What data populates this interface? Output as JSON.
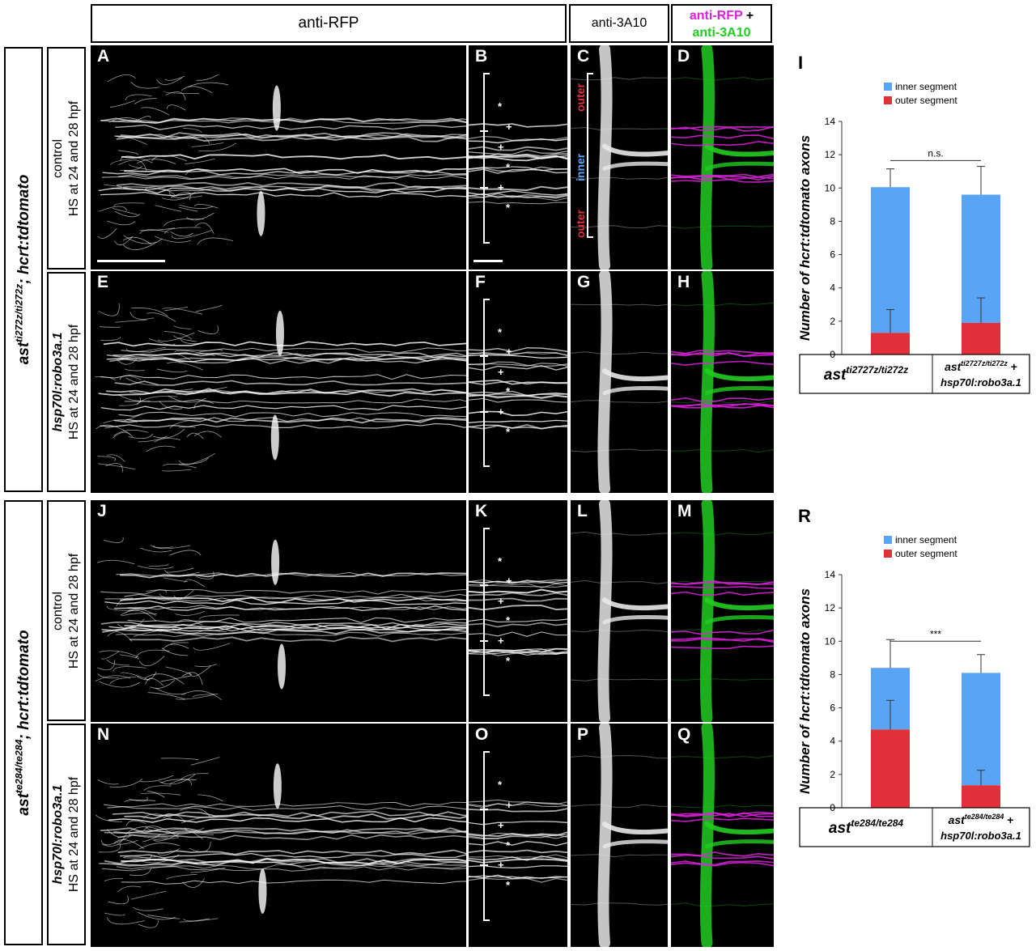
{
  "headers": {
    "anti_rfp": "anti-RFP",
    "anti_3a10": "anti-3A10",
    "merge_magenta": "anti-RFP",
    "merge_plus": " +",
    "merge_green": "anti-3A10"
  },
  "genotypes": {
    "top_base": "ast",
    "top_sup": "ti272z/ti272z",
    "top_rest": "; hcrt:tdtomato",
    "bottom_base": "ast",
    "bottom_sup": "te284/te284",
    "bottom_rest": "; hcrt:tdtomato"
  },
  "conditions": {
    "control_line1": "control",
    "control_line2": "HS at 24 and 28 hpf",
    "robo_line1": "hsp70l:robo3a.1",
    "robo_line2": "HS at 24 and 28 hpf"
  },
  "panel_letters": [
    "A",
    "B",
    "C",
    "D",
    "E",
    "F",
    "G",
    "H",
    "J",
    "K",
    "L",
    "M",
    "N",
    "O",
    "P",
    "Q"
  ],
  "segment_labels": {
    "outer": "outer",
    "inner": "inner"
  },
  "marks": {
    "star": "*",
    "plus": "+"
  },
  "colors": {
    "inner": "#5aa4f5",
    "outer": "#e0303a",
    "magenta": "#e020e0",
    "green": "#22cc22"
  },
  "charts": {
    "I": {
      "letter": "I",
      "ylabel_pre": "Number of ",
      "ylabel_it": "hcrt:tdtomato",
      "ylabel_post": " axons",
      "legend_inner": "inner segment",
      "legend_outer": "outer segment",
      "significance": "n.s.",
      "cat1_base": "ast",
      "cat1_sup": "ti2727z/ti272z",
      "cat2_base": "ast",
      "cat2_sup": "ti2727z/ti272z",
      "cat2_plus": " +",
      "cat2_line2": "hsp70l:robo3a.1"
    },
    "R": {
      "letter": "R",
      "ylabel_pre": "Number of ",
      "ylabel_it": "hcrt:tdtomato",
      "ylabel_post": " axons",
      "legend_inner": "inner segment",
      "legend_outer": "outer segment",
      "significance": "***",
      "cat1_base": "ast",
      "cat1_sup": "te284/te284",
      "cat2_base": "ast",
      "cat2_sup": "te284/te284",
      "cat2_plus": " +",
      "cat2_line2": "hsp70l:robo3a.1"
    }
  },
  "chart_data": [
    {
      "type": "bar",
      "stacked": true,
      "categories": [
        "ast ti2727z/ti272z",
        "ast ti2727z/ti272z + hsp70l:robo3a.1"
      ],
      "series": [
        {
          "name": "outer segment",
          "values": [
            1.3,
            1.9
          ],
          "errors": [
            1.4,
            1.5
          ]
        },
        {
          "name": "inner segment",
          "values": [
            8.75,
            7.7
          ],
          "errors": [
            1.1,
            1.7
          ]
        }
      ],
      "totals": [
        10.05,
        9.6
      ],
      "ylabel": "Number of hcrt:tdtomato axons",
      "ylim": [
        0,
        14
      ],
      "yticks": [
        0,
        2,
        4,
        6,
        8,
        10,
        12,
        14
      ],
      "significance": "n.s."
    },
    {
      "type": "bar",
      "stacked": true,
      "categories": [
        "ast te284/te284",
        "ast te284/te284 + hsp70l:robo3a.1"
      ],
      "series": [
        {
          "name": "outer segment",
          "values": [
            4.7,
            1.35
          ],
          "errors": [
            1.75,
            0.9
          ]
        },
        {
          "name": "inner segment",
          "values": [
            3.7,
            6.75
          ],
          "errors": [
            1.7,
            1.1
          ]
        }
      ],
      "totals": [
        8.4,
        8.1
      ],
      "ylabel": "Number of hcrt:tdtomato axons",
      "ylim": [
        0,
        14
      ],
      "yticks": [
        0,
        2,
        4,
        6,
        8,
        10,
        12,
        14
      ],
      "significance": "***"
    }
  ]
}
